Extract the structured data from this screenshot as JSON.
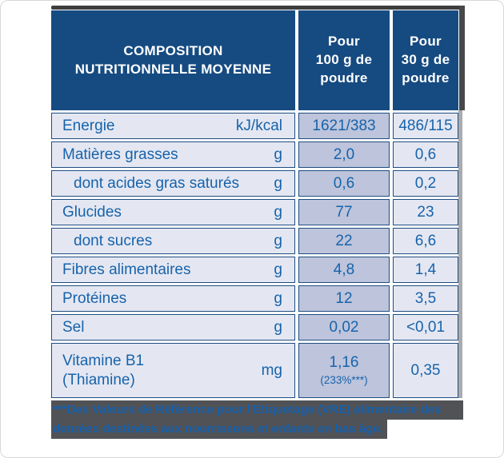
{
  "colors": {
    "header_bg": "#164b81",
    "cell_bg": "#e4e7f2",
    "col2_highlight_bg": "#bdc4db",
    "cell_border": "#1d4d82",
    "body_text_blue": "#1763ab",
    "header_text": "#ffffff",
    "footnote_text_blue": "#1560ab",
    "footnote_highlight_grey": "#515256",
    "marker_stroke_dark_grey": "#3d3e40",
    "marker_stroke_light_grey": "#aaabae"
  },
  "table": {
    "header": {
      "title": "COMPOSITION\nNUTRITIONNELLE MOYENNE",
      "per100": "Pour\n100 g de\npoudre",
      "per30": "Pour\n30 g de\npoudre"
    },
    "rows": [
      {
        "label": "Energie",
        "unit": "kJ/kcal",
        "per100": "1621/383",
        "per30": "486/115"
      },
      {
        "label": "Matières grasses",
        "unit": "g",
        "per100": "2,0",
        "per30": "0,6"
      },
      {
        "label": "dont acides gras saturés",
        "unit": "g",
        "per100": "0,6",
        "per30": "0,2"
      },
      {
        "label": "Glucides",
        "unit": "g",
        "per100": "77",
        "per30": "23"
      },
      {
        "label": "dont sucres",
        "unit": "g",
        "per100": "22",
        "per30": "6,6"
      },
      {
        "label": "Fibres alimentaires",
        "unit": "g",
        "per100": "4,8",
        "per30": "1,4"
      },
      {
        "label": "Protéines",
        "unit": "g",
        "per100": "12",
        "per30": "3,5"
      },
      {
        "label": "Sel",
        "unit": "g",
        "per100": "0,02",
        "per30": "<0,01"
      },
      {
        "label": "Vitamine B1\n(Thiamine)",
        "unit": "mg",
        "per100": "1,16",
        "per100_note": "(233%***)",
        "per30": "0,35"
      }
    ]
  },
  "footnote": {
    "line1": "***Des Valeurs de Référence pour l'Etiquetage (VRE) alimentaire des",
    "line2": "denrées destinées aux nourrissons et enfants en bas âge."
  }
}
